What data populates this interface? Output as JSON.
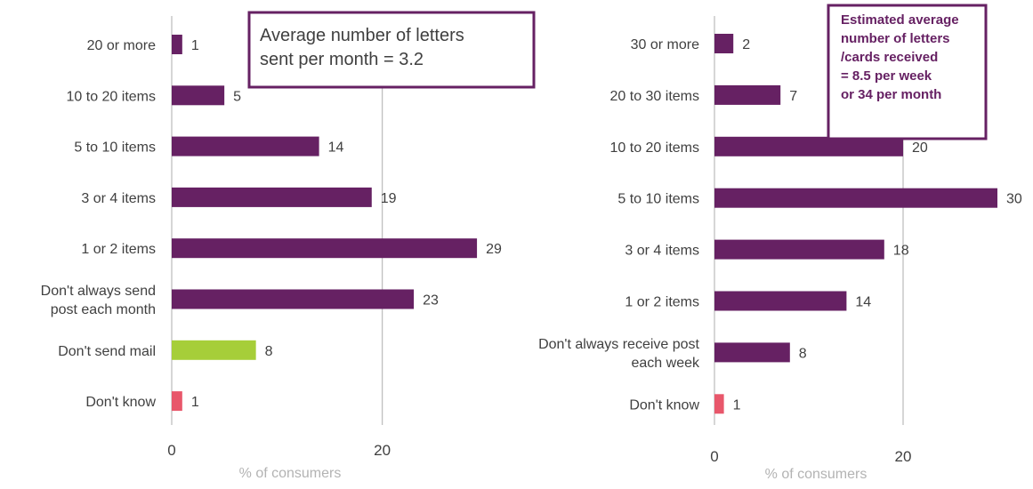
{
  "chart_data": [
    {
      "type": "bar",
      "orientation": "horizontal",
      "categories": [
        "20 or more",
        "10 to 20 items",
        "5 to 10 items",
        "3 or 4 items",
        "1 or 2 items",
        "Don't always send post each month",
        "Don't send mail",
        "Don't know"
      ],
      "category_lines": [
        [
          "20 or more"
        ],
        [
          "10 to 20 items"
        ],
        [
          "5 to 10 items"
        ],
        [
          "3 or 4 items"
        ],
        [
          "1 or 2 items"
        ],
        [
          "Don't always send",
          "post each month"
        ],
        [
          "Don't send mail"
        ],
        [
          "Don't know"
        ]
      ],
      "values": [
        1,
        5,
        14,
        19,
        29,
        23,
        8,
        1
      ],
      "bar_colors": [
        "#662163",
        "#662163",
        "#662163",
        "#662163",
        "#662163",
        "#662163",
        "#a6ce39",
        "#e8576b"
      ],
      "xlim": [
        0,
        33
      ],
      "xticks": [
        "0",
        "20"
      ],
      "xlabel": "% of consumers",
      "grid": "vertical line at 20",
      "callout": [
        "Average number of letters",
        "sent per month = 3.2"
      ]
    },
    {
      "type": "bar",
      "orientation": "horizontal",
      "categories": [
        "30 or more",
        "20 to 30 items",
        "10 to 20 items",
        "5 to 10 items",
        "3 or 4 items",
        "1 or 2 items",
        "Don't always receive post each week",
        "Don't know"
      ],
      "category_lines": [
        [
          "30 or more"
        ],
        [
          "20 to 30 items"
        ],
        [
          "10 to 20 items"
        ],
        [
          "5 to 10 items"
        ],
        [
          "3 or 4 items"
        ],
        [
          "1 or 2 items"
        ],
        [
          "Don't always receive post",
          "each week"
        ],
        [
          "Don't know"
        ]
      ],
      "values": [
        2,
        7,
        20,
        30,
        18,
        14,
        8,
        1
      ],
      "bar_colors": [
        "#662163",
        "#662163",
        "#662163",
        "#662163",
        "#662163",
        "#662163",
        "#662163",
        "#e8576b"
      ],
      "xlim": [
        0,
        31
      ],
      "xticks": [
        "0",
        "20"
      ],
      "xlabel": "% of consumers",
      "grid": "vertical line at 20",
      "callout": [
        "Estimated average",
        "number of letters",
        "/cards received",
        "=  8.5 per week",
        "or 34 per month"
      ]
    }
  ],
  "colors": {
    "bar": "#662163",
    "accent_green": "#a6ce39",
    "accent_red": "#e8576b",
    "grid": "#bfbfbf",
    "axis": "#bfbfbf"
  }
}
